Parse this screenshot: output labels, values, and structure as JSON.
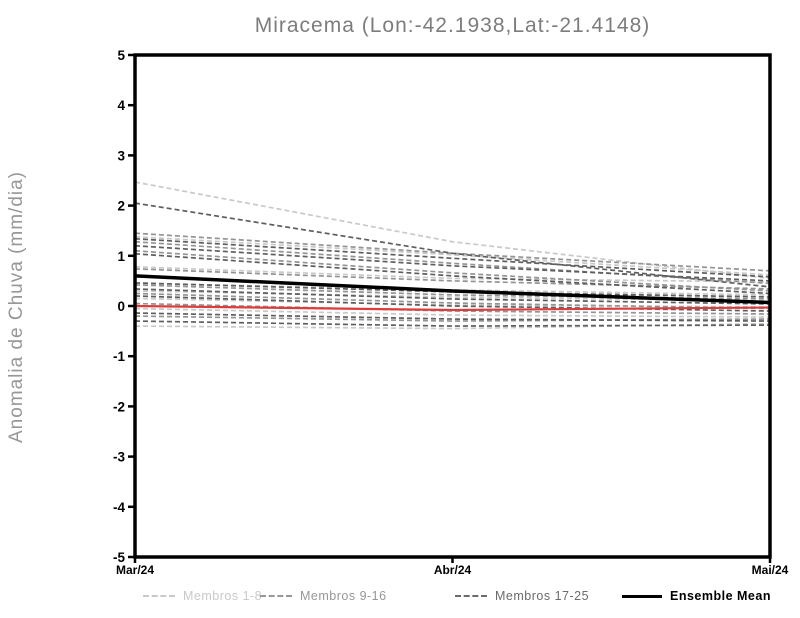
{
  "title": "Miracema (Lon:-42.1938,Lat:-21.4148)",
  "chart_data": {
    "type": "line",
    "title": "Miracema (Lon:-42.1938,Lat:-21.4148)",
    "xlabel": "",
    "ylabel": "Anomalia de Chuva (mm/dia)",
    "x_categories": [
      "Mar/24",
      "Abr/24",
      "Mai/24"
    ],
    "ylim": [
      -5,
      5
    ],
    "yticks": [
      5,
      4,
      3,
      2,
      1,
      0,
      -1,
      -2,
      -3,
      -4,
      -5
    ],
    "grid": false,
    "legend_position": "bottom",
    "groups": {
      "members_1_8": {
        "color": "#c9c9c9",
        "style": "dashed"
      },
      "members_9_16": {
        "color": "#949494",
        "style": "dashed"
      },
      "members_17_25": {
        "color": "#5e5e5e",
        "style": "dashed"
      },
      "mean": {
        "color": "#000000",
        "style": "solid"
      },
      "reference": {
        "color": "#dd3c3c",
        "style": "solid"
      }
    },
    "legend": [
      {
        "label": "Membros 1-8",
        "color": "#c9c9c9",
        "style": "dashed"
      },
      {
        "label": "Membros 9-16",
        "color": "#979797",
        "style": "dashed"
      },
      {
        "label": "Membros 17-25",
        "color": "#6b6b6b",
        "style": "dashed"
      },
      {
        "label": "Ensemble Mean",
        "color": "#000000",
        "style": "solid"
      }
    ],
    "series": [
      {
        "name": "member-1",
        "group": "members_1_8",
        "values": [
          2.47,
          1.28,
          0.55
        ]
      },
      {
        "name": "member-2",
        "group": "members_1_8",
        "values": [
          1.38,
          1.02,
          0.62
        ]
      },
      {
        "name": "member-3",
        "group": "members_1_8",
        "values": [
          0.78,
          0.55,
          0.48
        ]
      },
      {
        "name": "member-4",
        "group": "members_1_8",
        "values": [
          0.45,
          0.32,
          0.22
        ]
      },
      {
        "name": "member-5",
        "group": "members_1_8",
        "values": [
          0.3,
          0.18,
          0.1
        ]
      },
      {
        "name": "member-6",
        "group": "members_1_8",
        "values": [
          0.15,
          0.02,
          -0.02
        ]
      },
      {
        "name": "member-7",
        "group": "members_1_8",
        "values": [
          -0.05,
          -0.18,
          -0.22
        ]
      },
      {
        "name": "member-8",
        "group": "members_1_8",
        "values": [
          -0.4,
          -0.45,
          -0.35
        ]
      },
      {
        "name": "member-9",
        "group": "members_9_16",
        "values": [
          1.45,
          1.05,
          0.7
        ]
      },
      {
        "name": "member-10",
        "group": "members_9_16",
        "values": [
          1.28,
          0.85,
          0.45
        ]
      },
      {
        "name": "member-11",
        "group": "members_9_16",
        "values": [
          1.1,
          0.66,
          0.3
        ]
      },
      {
        "name": "member-12",
        "group": "members_9_16",
        "values": [
          0.74,
          0.5,
          0.34
        ]
      },
      {
        "name": "member-13",
        "group": "members_9_16",
        "values": [
          0.42,
          0.22,
          0.14
        ]
      },
      {
        "name": "member-14",
        "group": "members_9_16",
        "values": [
          0.25,
          0.06,
          -0.05
        ]
      },
      {
        "name": "member-15",
        "group": "members_9_16",
        "values": [
          0.05,
          -0.1,
          -0.16
        ]
      },
      {
        "name": "member-16",
        "group": "members_9_16",
        "values": [
          -0.2,
          -0.3,
          -0.26
        ]
      },
      {
        "name": "member-17",
        "group": "members_17_25",
        "values": [
          2.05,
          1.05,
          0.38
        ]
      },
      {
        "name": "member-18",
        "group": "members_17_25",
        "values": [
          1.34,
          0.95,
          0.58
        ]
      },
      {
        "name": "member-19",
        "group": "members_17_25",
        "values": [
          1.2,
          0.8,
          0.5
        ]
      },
      {
        "name": "member-20",
        "group": "members_17_25",
        "values": [
          1.04,
          0.6,
          0.25
        ]
      },
      {
        "name": "member-21",
        "group": "members_17_25",
        "values": [
          0.46,
          0.28,
          0.18
        ]
      },
      {
        "name": "member-22",
        "group": "members_17_25",
        "values": [
          0.34,
          0.14,
          0.04
        ]
      },
      {
        "name": "member-23",
        "group": "members_17_25",
        "values": [
          0.2,
          0.0,
          -0.1
        ]
      },
      {
        "name": "member-24",
        "group": "members_17_25",
        "values": [
          -0.14,
          -0.26,
          -0.3
        ]
      },
      {
        "name": "member-25",
        "group": "members_17_25",
        "values": [
          -0.3,
          -0.4,
          -0.38
        ]
      },
      {
        "name": "ensemble-mean",
        "group": "mean",
        "values": [
          0.6,
          0.3,
          0.07
        ]
      },
      {
        "name": "zero-reference",
        "group": "reference",
        "values": [
          0.0,
          -0.08,
          -0.03
        ]
      }
    ]
  },
  "colors": {
    "axis": "#000000",
    "title_text": "#7d7d7d",
    "ylabel_text": "#979797",
    "tick_label": "#000000"
  }
}
